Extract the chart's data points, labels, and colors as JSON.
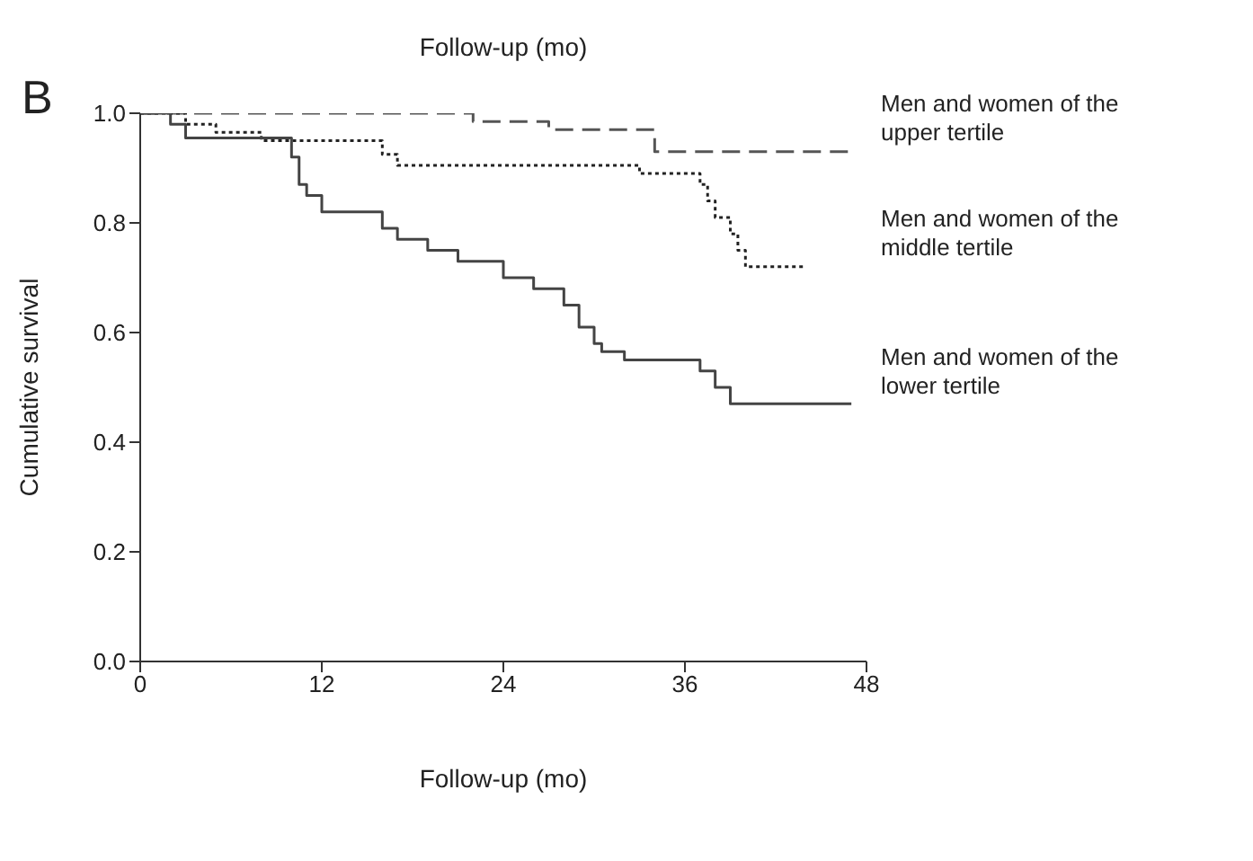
{
  "chart_data": {
    "type": "step",
    "title": "Follow-up (mo)",
    "xlabel": "Follow-up (mo)",
    "ylabel": "Cumulative survival",
    "annotations": [
      "B"
    ],
    "xlim": [
      0,
      48
    ],
    "xticks": [
      0,
      12,
      24,
      36,
      48
    ],
    "ylim": [
      0,
      1
    ],
    "yticks": [
      {
        "value": 0,
        "label": "0.0"
      },
      {
        "value": 0.2,
        "label": "0.2"
      },
      {
        "value": 0.4,
        "label": "0.4"
      },
      {
        "value": 0.6,
        "label": "0.6"
      },
      {
        "value": 0.8,
        "label": "0.8"
      },
      {
        "value": 1,
        "label": "1.0"
      }
    ],
    "series": [
      {
        "name": "Men and women of the upper tertile",
        "color": "#555555",
        "line_style": "dashed",
        "x": [
          0,
          22,
          27,
          34,
          47
        ],
        "values": [
          1,
          0.985,
          0.97,
          0.93,
          0.93
        ]
      },
      {
        "name": "Men and women of the middle tertile",
        "color": "#222222",
        "line_style": "dotted",
        "x": [
          0,
          3,
          5,
          8,
          16,
          17,
          33,
          37,
          37.5,
          38,
          39,
          39.5,
          40,
          44
        ],
        "values": [
          1,
          0.98,
          0.965,
          0.95,
          0.925,
          0.905,
          0.89,
          0.87,
          0.84,
          0.81,
          0.78,
          0.75,
          0.72,
          0.72
        ]
      },
      {
        "name": "Men and women of the lower tertile",
        "color": "#444444",
        "line_style": "solid",
        "x": [
          0,
          2,
          3,
          10,
          10.5,
          11,
          12,
          16,
          17,
          19,
          21,
          24,
          26,
          28,
          29,
          30,
          30.5,
          32,
          37,
          38,
          39,
          40,
          47
        ],
        "values": [
          1,
          0.98,
          0.955,
          0.92,
          0.87,
          0.85,
          0.82,
          0.79,
          0.77,
          0.75,
          0.73,
          0.7,
          0.68,
          0.65,
          0.61,
          0.58,
          0.565,
          0.55,
          0.53,
          0.5,
          0.47,
          0.47,
          0.47
        ]
      }
    ]
  }
}
